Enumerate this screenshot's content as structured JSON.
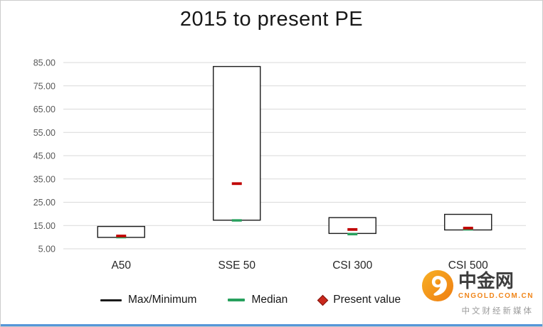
{
  "title": "2015 to present  PE",
  "chart_data": {
    "type": "boxplot",
    "title": "2015 to present PE",
    "categories": [
      "A50",
      "SSE 50",
      "CSI 300",
      "CSI 500"
    ],
    "ylim": [
      5,
      85
    ],
    "yticks": [
      "85.00",
      "75.00",
      "65.00",
      "55.00",
      "45.00",
      "35.00",
      "25.00",
      "15.00",
      "5.00"
    ],
    "grid": true,
    "legend_position": "bottom",
    "colors": {
      "box": "#1a1a1a",
      "median": "#27a05d",
      "present": "#c00000"
    },
    "series": [
      {
        "name": "Max/Minimum",
        "type": "range",
        "max": [
          14.6,
          83.3,
          18.4,
          19.8
        ],
        "min": [
          9.9,
          17.3,
          11.6,
          13.1
        ]
      },
      {
        "name": "Median",
        "type": "tick",
        "values": [
          10.0,
          17.2,
          11.3,
          13.4
        ]
      },
      {
        "name": "Present value",
        "type": "dash",
        "values": [
          10.5,
          33.0,
          13.3,
          13.9
        ]
      }
    ],
    "legend": [
      {
        "label": "Max/Minimum",
        "marker": "line",
        "color": "#1a1a1a"
      },
      {
        "label": "Median",
        "marker": "line",
        "color": "#27a05d"
      },
      {
        "label": "Present value",
        "marker": "diamond",
        "color": "#c00000"
      }
    ]
  },
  "watermark": {
    "brand": "中金网",
    "domain": "CNGOLD.COM.CN",
    "tagline": "中文财经新媒体"
  }
}
